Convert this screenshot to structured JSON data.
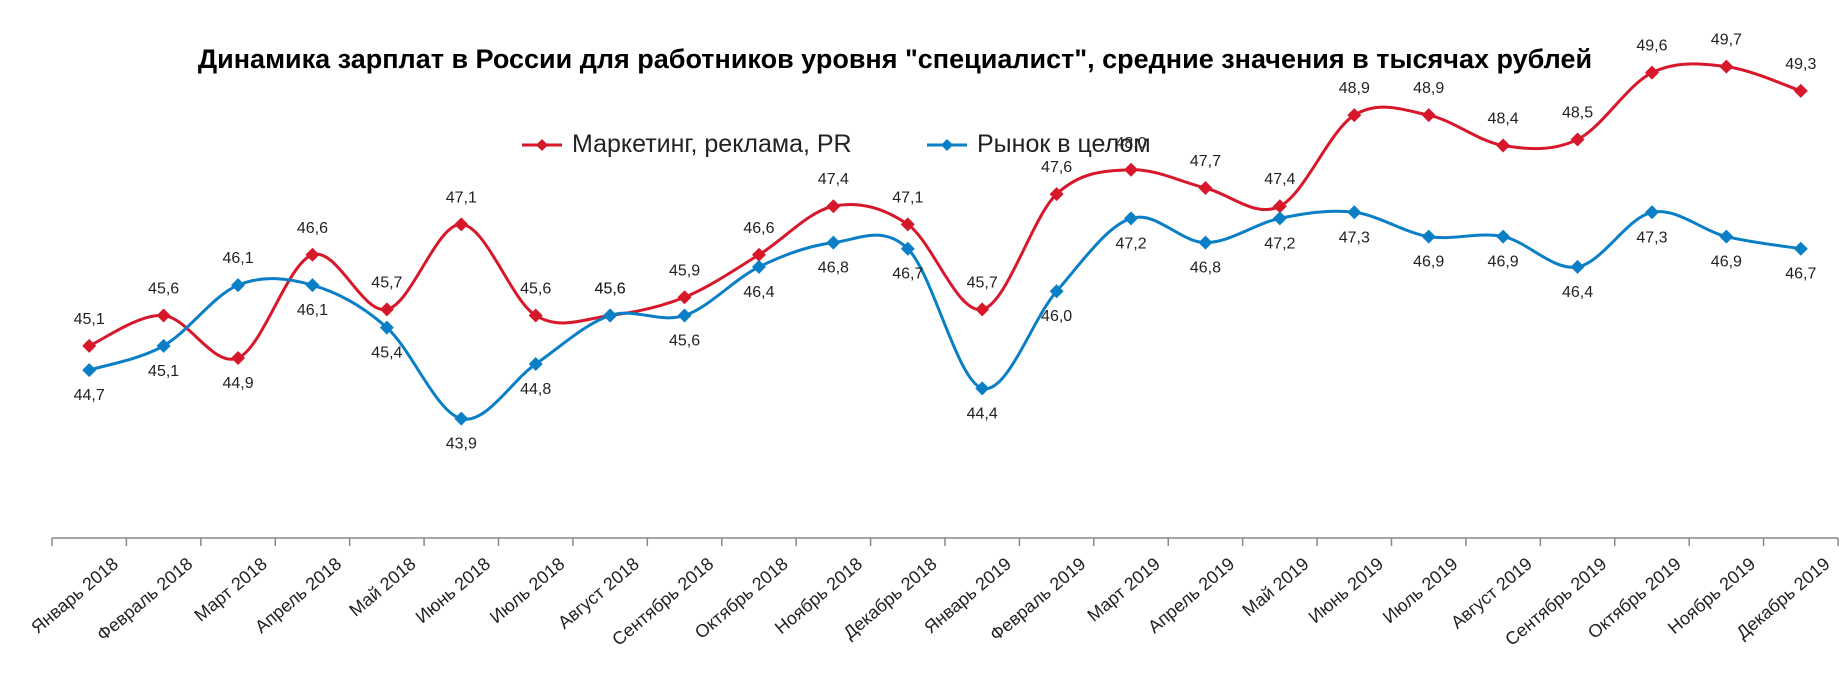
{
  "chart_data": {
    "type": "line",
    "title": "Динамика зарплат в России для работников уровня \"специалист\", средние значения в тысячах рублей",
    "legend_position": "top",
    "grid": false,
    "ylim": [
      42,
      51
    ],
    "categories": [
      "Январь 2018",
      "Февраль 2018",
      "Март 2018",
      "Апрель 2018",
      "Май 2018",
      "Июнь 2018",
      "Июль 2018",
      "Август 2018",
      "Сентябрь 2018",
      "Октябрь 2018",
      "Ноябрь 2018",
      "Декабрь 2018",
      "Январь 2019",
      "Февраль 2019",
      "Март 2019",
      "Апрель 2019",
      "Май 2019",
      "Июнь 2019",
      "Июль 2019",
      "Август 2019",
      "Сентябрь 2019",
      "Октябрь 2019",
      "Ноябрь 2019",
      "Декабрь 2019"
    ],
    "series": [
      {
        "name": "Маркетинг, реклама, PR",
        "color": "#d7182a",
        "values": [
          45.1,
          45.6,
          44.9,
          46.6,
          45.7,
          47.1,
          45.6,
          45.6,
          45.9,
          46.6,
          47.4,
          47.1,
          45.7,
          47.6,
          48.0,
          47.7,
          47.4,
          48.9,
          48.9,
          48.4,
          48.5,
          49.6,
          49.7,
          49.3
        ],
        "labels": [
          "45,1",
          "45,6",
          "44,9",
          "46,6",
          "45,7",
          "47,1",
          "45,6",
          "45,6",
          "45,9",
          "46,6",
          "47,4",
          "47,1",
          "45,7",
          "47,6",
          "48,0",
          "47,7",
          "47,4",
          "48,9",
          "48,9",
          "48,4",
          "48,5",
          "49,6",
          "49,7",
          "49,3"
        ]
      },
      {
        "name": "Рынок в целом",
        "color": "#0a7fc6",
        "values": [
          44.7,
          45.1,
          46.1,
          46.1,
          45.4,
          43.9,
          44.8,
          45.6,
          45.6,
          46.4,
          46.8,
          46.7,
          44.4,
          46.0,
          47.2,
          46.8,
          47.2,
          47.3,
          46.9,
          46.9,
          46.4,
          47.3,
          46.9,
          46.7
        ],
        "labels": [
          "44,7",
          "45,1",
          "46,1",
          "46,1",
          "45,4",
          "43,9",
          "44,8",
          "45,6",
          "45,6",
          "46,4",
          "46,8",
          "46,7",
          "44,4",
          "46,0",
          "47,2",
          "46,8",
          "47,2",
          "47,3",
          "46,9",
          "46,9",
          "46,4",
          "47,3",
          "46,9",
          "46,7"
        ]
      }
    ]
  }
}
